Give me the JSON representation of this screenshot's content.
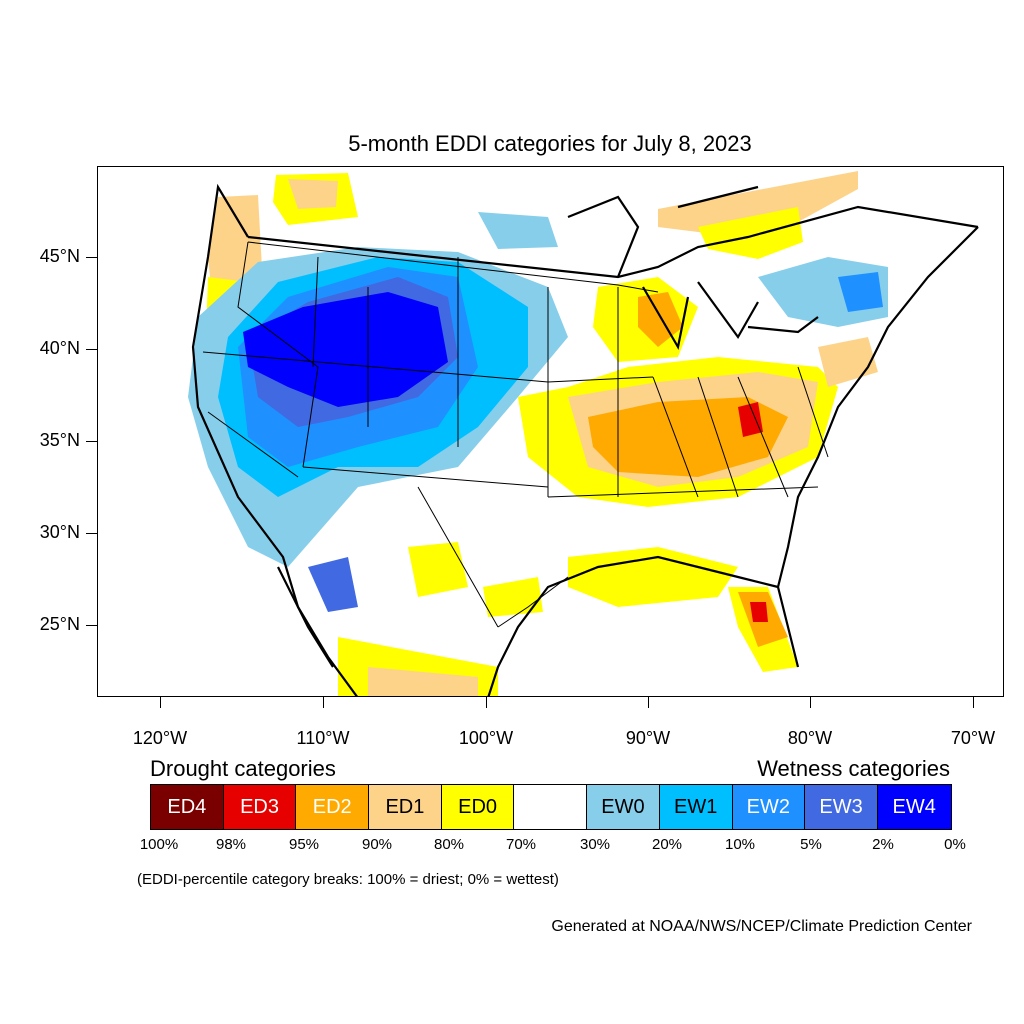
{
  "title": "5-month EDDI categories for July 8, 2023",
  "axes": {
    "lat_labels": [
      "45°N",
      "40°N",
      "35°N",
      "30°N",
      "25°N"
    ],
    "lon_labels": [
      "120°W",
      "110°W",
      "100°W",
      "90°W",
      "80°W",
      "70°W"
    ]
  },
  "legend": {
    "drought_heading": "Drought categories",
    "wetness_heading": "Wetness categories",
    "categories": [
      {
        "label": "ED4",
        "color": "#7a0000",
        "text_color": "#ffffff"
      },
      {
        "label": "ED3",
        "color": "#e60000",
        "text_color": "#ffffff"
      },
      {
        "label": "ED2",
        "color": "#ffaa00",
        "text_color": "#ffffff"
      },
      {
        "label": "ED1",
        "color": "#fdd38a",
        "text_color": "#000000"
      },
      {
        "label": "ED0",
        "color": "#ffff00",
        "text_color": "#000000"
      },
      {
        "label": "",
        "color": "#ffffff",
        "text_color": "#000000"
      },
      {
        "label": "EW0",
        "color": "#87ceeb",
        "text_color": "#000000"
      },
      {
        "label": "EW1",
        "color": "#00bfff",
        "text_color": "#000000"
      },
      {
        "label": "EW2",
        "color": "#1e90ff",
        "text_color": "#ffffff"
      },
      {
        "label": "EW3",
        "color": "#4169e1",
        "text_color": "#ffffff"
      },
      {
        "label": "EW4",
        "color": "#0000ff",
        "text_color": "#ffffff"
      }
    ],
    "breaks": [
      "100%",
      "98%",
      "95%",
      "90%",
      "80%",
      "70%",
      "30%",
      "20%",
      "10%",
      "5%",
      "2%",
      "0%"
    ]
  },
  "note": "(EDDI-percentile category breaks: 100% = driest; 0% = wettest)",
  "credit": "Generated at NOAA/NWS/NCEP/Climate Prediction Center"
}
